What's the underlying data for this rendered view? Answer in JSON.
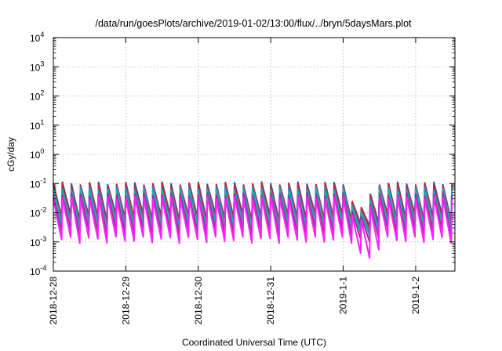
{
  "chart_data": {
    "type": "line",
    "title": "/data/run/goesPlots/archive/2019-01-02/13:00/flux/../bryn/5daysMars.plot",
    "xlabel": "Coordinated Universal Time (UTC)",
    "ylabel": "cGy/day",
    "yscale": "log",
    "ylim": [
      0.0001,
      10000
    ],
    "y_ticks": [
      {
        "base": "10",
        "exp": "-4",
        "value": 0.0001
      },
      {
        "base": "10",
        "exp": "-3",
        "value": 0.001
      },
      {
        "base": "10",
        "exp": "-2",
        "value": 0.01
      },
      {
        "base": "10",
        "exp": "-1",
        "value": 0.1
      },
      {
        "base": "10",
        "exp": "0",
        "value": 1
      },
      {
        "base": "10",
        "exp": "1",
        "value": 10
      },
      {
        "base": "10",
        "exp": "2",
        "value": 100
      },
      {
        "base": "10",
        "exp": "3",
        "value": 1000
      },
      {
        "base": "10",
        "exp": "4",
        "value": 10000
      }
    ],
    "xlim": [
      "2018-12-28",
      "2019-01-02 13:00"
    ],
    "x_ticks": [
      "2018-12-28",
      "2018-12-29",
      "2018-12-30",
      "2018-12-31",
      "2019-1-1",
      "2019-1-2"
    ],
    "grid": true,
    "legend": "none",
    "series": [
      {
        "color": "#2a52be",
        "pattern": {
          "period_hours": 3,
          "peak": 0.1,
          "trough": 0.007,
          "dip_center": "2019-01-01 05:30",
          "dip_peak": 0.015,
          "dip_trough": 0.0035
        }
      },
      {
        "color": "#d62020",
        "pattern": {
          "period_hours": 3,
          "peak": 0.09,
          "trough": 0.006,
          "dip_center": "2019-01-01 05:30",
          "dip_peak": 0.015,
          "dip_trough": 0.003
        }
      },
      {
        "color": "#2090d0",
        "pattern": {
          "period_hours": 3,
          "peak": 0.07,
          "trough": 0.0045,
          "dip_center": "2019-01-01 05:30",
          "dip_peak": 0.011,
          "dip_trough": 0.0022
        }
      },
      {
        "color": "#20b0a0",
        "pattern": {
          "period_hours": 3,
          "peak": 0.055,
          "trough": 0.0035,
          "dip_center": "2019-01-01 05:30",
          "dip_peak": 0.009,
          "dip_trough": 0.0016
        }
      },
      {
        "color": "#a030a0",
        "pattern": {
          "period_hours": 3,
          "peak": 0.042,
          "trough": 0.0022,
          "dip_center": "2019-01-01 05:30",
          "dip_peak": 0.007,
          "dip_trough": 0.001
        }
      },
      {
        "color": "#ff20ff",
        "pattern": {
          "period_hours": 3,
          "peak": 0.032,
          "trough": 0.0012,
          "dip_center": "2019-01-01 05:30",
          "dip_peak": 0.0055,
          "dip_trough": 0.00028
        }
      }
    ]
  }
}
